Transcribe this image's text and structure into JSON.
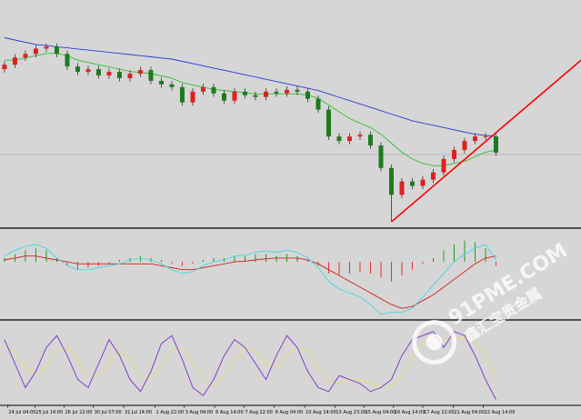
{
  "chart_data": [
    {
      "type": "candlestick",
      "xlim": [
        -0.43,
        55.13
      ],
      "ylim": [
        0,
        100
      ],
      "up_color": "#e02020",
      "down_color": "#1f7a1f",
      "wick_color": "#333333",
      "open": [
        70,
        72,
        75.2,
        76.8,
        79.2,
        80,
        76.8,
        71.2,
        68.8,
        70,
        67.2,
        68.8,
        66,
        68,
        69.6,
        64.8,
        63.2,
        62,
        55.2,
        60,
        62,
        59.2,
        56,
        60,
        58.4,
        57.6,
        60,
        59.2,
        60.8,
        60,
        56.8,
        52,
        40,
        38,
        40,
        40.8,
        36,
        26,
        14,
        20,
        18,
        20.8,
        24,
        30,
        34,
        38,
        40,
        40
      ],
      "high": [
        73.5,
        76.7,
        78.3,
        80.7,
        81.5,
        81.5,
        78.3,
        72.7,
        71.5,
        71.5,
        70.3,
        70.3,
        69.5,
        71.1,
        71.1,
        66.3,
        64.7,
        63.5,
        61.5,
        63.5,
        63.5,
        60.7,
        61.5,
        61.5,
        59.9,
        61.5,
        61.5,
        62.3,
        62.3,
        61.5,
        58.3,
        53.5,
        41.5,
        41.5,
        42.3,
        42.3,
        37.5,
        27.5,
        21.5,
        21.5,
        22.3,
        25.5,
        31.5,
        35.5,
        39.5,
        41.5,
        41.5,
        41.5
      ],
      "low": [
        68.5,
        70.5,
        73.7,
        75.3,
        77.7,
        75.3,
        69.7,
        67.3,
        67.3,
        65.7,
        65.7,
        64.5,
        64.5,
        66.5,
        63.3,
        61.7,
        60.5,
        53.7,
        53.7,
        58.5,
        57.7,
        54.5,
        54.5,
        56.9,
        56.1,
        56.1,
        57.7,
        57.7,
        58.5,
        55.3,
        50.5,
        38.5,
        36.5,
        36.5,
        38.5,
        34.5,
        24.5,
        2,
        12.5,
        16.5,
        16.5,
        19.3,
        22.5,
        28.5,
        32.5,
        36.5,
        38.5,
        31.3
      ],
      "close": [
        72,
        75.2,
        76.8,
        79.2,
        80,
        76.8,
        71.2,
        68.8,
        70,
        67.2,
        68.8,
        66,
        68,
        69.6,
        64.8,
        63.2,
        62,
        55.2,
        60,
        62,
        59.2,
        56,
        60,
        58.4,
        57.6,
        60,
        59.2,
        60.8,
        60,
        56.8,
        52,
        40,
        38,
        40,
        40.8,
        36,
        26,
        14,
        20,
        18,
        20.8,
        24,
        30,
        34,
        38,
        40,
        40,
        32.8
      ],
      "series": [
        {
          "color": "#2b3bd6",
          "values": [
            84,
            83,
            82,
            81,
            80.5,
            80,
            79.5,
            79,
            78.5,
            78,
            77.5,
            77,
            76.5,
            76,
            75.5,
            75,
            74.5,
            73.5,
            72.5,
            71.5,
            70.5,
            69.5,
            68.5,
            67.5,
            66.5,
            65.5,
            64.5,
            63.5,
            62.5,
            61.5,
            60.5,
            59,
            57.5,
            56,
            54.5,
            53,
            51.5,
            50,
            48.5,
            47,
            46,
            45,
            44,
            43,
            42,
            41,
            40.5,
            40
          ]
        },
        {
          "color": "#30c030",
          "values": [
            74,
            74,
            75,
            76,
            77,
            77,
            76,
            74,
            73,
            72,
            71,
            70,
            69,
            68.5,
            68,
            67,
            66,
            64,
            63,
            62,
            61,
            60.5,
            60,
            59.5,
            59,
            59,
            59,
            59,
            59,
            58.5,
            57,
            54,
            51,
            48,
            46,
            44,
            41,
            37,
            33,
            30,
            28,
            27,
            27,
            28,
            29,
            31,
            33,
            34
          ]
        }
      ],
      "trendline": {
        "color": "#ff0000",
        "x": [
          37,
          55.13
        ],
        "values": [
          2,
          74
        ]
      },
      "level": {
        "color": "#a8a8a8",
        "value": 32
      }
    },
    {
      "type": "bar",
      "xlim": [
        -0.43,
        55.13
      ],
      "ylim": [
        -1.45,
        0.8
      ],
      "up_color": "#1e9a1e",
      "down_color": "#e03030",
      "values": [
        0.1,
        0.2,
        0.3,
        0.35,
        0.3,
        0.1,
        -0.1,
        -0.2,
        -0.15,
        -0.1,
        -0.05,
        0.05,
        0.1,
        0.15,
        0.1,
        0.05,
        -0.05,
        -0.1,
        -0.05,
        0.05,
        0.1,
        0.1,
        0.15,
        0.15,
        0.2,
        0.2,
        0.15,
        0.2,
        0.15,
        0.05,
        -0.1,
        -0.3,
        -0.35,
        -0.3,
        -0.25,
        -0.3,
        -0.4,
        -0.5,
        -0.35,
        -0.2,
        -0.05,
        0.1,
        0.3,
        0.45,
        0.55,
        0.5,
        0.35,
        -0.1
      ],
      "series": [
        {
          "color": "#d02020",
          "values": [
            0.05,
            0.1,
            0.15,
            0.15,
            0.1,
            0.05,
            0,
            -0.05,
            -0.05,
            -0.05,
            -0.05,
            -0.05,
            -0.05,
            -0.05,
            -0.05,
            -0.1,
            -0.15,
            -0.2,
            -0.2,
            -0.15,
            -0.1,
            -0.05,
            0,
            0.02,
            0.05,
            0.08,
            0.1,
            0.1,
            0.1,
            0.05,
            -0.05,
            -0.2,
            -0.35,
            -0.5,
            -0.65,
            -0.8,
            -0.95,
            -1.1,
            -1.2,
            -1.15,
            -1.0,
            -0.85,
            -0.65,
            -0.45,
            -0.25,
            -0.05,
            0.1,
            0.15
          ]
        },
        {
          "color": "#40d8e0",
          "values": [
            0.15,
            0.3,
            0.4,
            0.45,
            0.35,
            0.1,
            -0.1,
            -0.2,
            -0.2,
            -0.15,
            -0.1,
            -0.05,
            0.05,
            0.1,
            0.05,
            -0.05,
            -0.2,
            -0.3,
            -0.25,
            -0.1,
            0,
            0.05,
            0.15,
            0.17,
            0.25,
            0.28,
            0.25,
            0.3,
            0.25,
            0.1,
            -0.15,
            -0.5,
            -0.7,
            -0.8,
            -0.9,
            -1.1,
            -1.35,
            -1.3,
            -1.3,
            -1.2,
            -0.9,
            -0.6,
            -0.3,
            0,
            0.2,
            0.35,
            0.45,
            0.05
          ]
        }
      ]
    },
    {
      "type": "line",
      "xlim": [
        -0.43,
        55.13
      ],
      "ylim": [
        0,
        100
      ],
      "series": [
        {
          "color": "#e8e070",
          "values": [
            70,
            65,
            45,
            35,
            45,
            65,
            70,
            55,
            35,
            35,
            50,
            65,
            55,
            35,
            30,
            45,
            65,
            70,
            50,
            30,
            22,
            35,
            55,
            70,
            65,
            50,
            45,
            60,
            70,
            65,
            45,
            28,
            25,
            30,
            30,
            25,
            20,
            22,
            35,
            55,
            75,
            85,
            80,
            82,
            82,
            75,
            60,
            35
          ]
        },
        {
          "color": "#7a30c8",
          "values": [
            80,
            50,
            20,
            40,
            70,
            85,
            60,
            30,
            20,
            50,
            80,
            60,
            30,
            15,
            40,
            75,
            85,
            55,
            20,
            10,
            30,
            60,
            80,
            70,
            50,
            30,
            60,
            85,
            70,
            40,
            20,
            15,
            35,
            30,
            25,
            15,
            20,
            30,
            60,
            80,
            85,
            90,
            70,
            90,
            85,
            60,
            30,
            5
          ]
        }
      ],
      "xticks": [
        {
          "value": 0.3,
          "label": "24 Jul 04:00"
        },
        {
          "value": 2.9,
          "label": "25 Jul 14:00"
        },
        {
          "value": 5.7,
          "label": "26 Jul 22:00"
        },
        {
          "value": 8.5,
          "label": "30 Jul 07:00"
        },
        {
          "value": 11.4,
          "label": "31 Jul 14:00"
        },
        {
          "value": 14.4,
          "label": "1 Aug 22:00"
        },
        {
          "value": 17.2,
          "label": "3 Aug 04:00"
        },
        {
          "value": 20.1,
          "label": "6 Aug 14:00"
        },
        {
          "value": 22.9,
          "label": "7 Aug 22:00"
        },
        {
          "value": 25.8,
          "label": "9 Aug 04:00"
        },
        {
          "value": 28.7,
          "label": "10 Aug 14:00"
        },
        {
          "value": 31.6,
          "label": "13 Aug 23:00"
        },
        {
          "value": 34.4,
          "label": "15 Aug 04:00"
        },
        {
          "value": 37.2,
          "label": "16 Aug 14:00"
        },
        {
          "value": 40.0,
          "label": "17 Aug 22:00"
        },
        {
          "value": 42.9,
          "label": "21 Aug 04:00"
        },
        {
          "value": 45.8,
          "label": "22 Aug 14:00"
        }
      ]
    }
  ],
  "watermark": {
    "site": "91PME.COM",
    "name": "鑫汇宝贵金属"
  }
}
